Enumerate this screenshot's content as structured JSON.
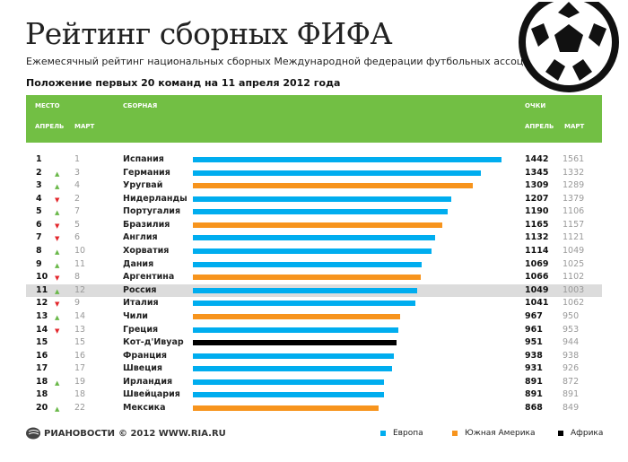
{
  "title": "Рейтинг сборных ФИФА",
  "subtitle": "Ежемесячный рейтинг национальных сборных Международной федерации футбольных ассоциаций",
  "caption": "Положение первых 20 команд на 11 апреля 2012 года",
  "header": {
    "place": "МЕСТО",
    "april": "АПРЕЛЬ",
    "march": "МАРТ",
    "team": "СБОРНАЯ",
    "points": "ОЧКИ",
    "points_april": "АПРЕЛЬ",
    "points_march": "МАРТ"
  },
  "colors": {
    "europe": "#00adef",
    "south_america": "#f7941d",
    "africa": "#000000",
    "header": "#72bf44",
    "highlight": "#dcdcdc"
  },
  "chart_data": {
    "type": "bar",
    "orientation": "horizontal",
    "title": "Рейтинг сборных ФИФА",
    "rows": [
      {
        "rank": "1",
        "change": "",
        "march": "1",
        "team": "Испания",
        "region": "europe",
        "points": 1442,
        "points_march": 1561
      },
      {
        "rank": "2",
        "change": "up",
        "march": "3",
        "team": "Германия",
        "region": "europe",
        "points": 1345,
        "points_march": 1332
      },
      {
        "rank": "3",
        "change": "up",
        "march": "4",
        "team": "Уругвай",
        "region": "south_america",
        "points": 1309,
        "points_march": 1289
      },
      {
        "rank": "4",
        "change": "down",
        "march": "2",
        "team": "Нидерланды",
        "region": "europe",
        "points": 1207,
        "points_march": 1379
      },
      {
        "rank": "5",
        "change": "up",
        "march": "7",
        "team": "Португалия",
        "region": "europe",
        "points": 1190,
        "points_march": 1106
      },
      {
        "rank": "6",
        "change": "down",
        "march": "5",
        "team": "Бразилия",
        "region": "south_america",
        "points": 1165,
        "points_march": 1157
      },
      {
        "rank": "7",
        "change": "down",
        "march": "6",
        "team": "Англия",
        "region": "europe",
        "points": 1132,
        "points_march": 1121
      },
      {
        "rank": "8",
        "change": "up",
        "march": "10",
        "team": "Хорватия",
        "region": "europe",
        "points": 1114,
        "points_march": 1049
      },
      {
        "rank": "9",
        "change": "up",
        "march": "11",
        "team": "Дания",
        "region": "europe",
        "points": 1069,
        "points_march": 1025
      },
      {
        "rank": "10",
        "change": "down",
        "march": "8",
        "team": "Аргентина",
        "region": "south_america",
        "points": 1066,
        "points_march": 1102
      },
      {
        "rank": "11",
        "change": "up",
        "march": "12",
        "team": "Россия",
        "region": "europe",
        "points": 1049,
        "points_march": 1003,
        "highlight": true
      },
      {
        "rank": "12",
        "change": "down",
        "march": "9",
        "team": "Италия",
        "region": "europe",
        "points": 1041,
        "points_march": 1062
      },
      {
        "rank": "13",
        "change": "up",
        "march": "14",
        "team": "Чили",
        "region": "south_america",
        "points": 967,
        "points_march": 950
      },
      {
        "rank": "14",
        "change": "down",
        "march": "13",
        "team": "Греция",
        "region": "europe",
        "points": 961,
        "points_march": 953
      },
      {
        "rank": "15",
        "change": "",
        "march": "15",
        "team": "Кот-д'Ивуар",
        "region": "africa",
        "points": 951,
        "points_march": 944
      },
      {
        "rank": "16",
        "change": "",
        "march": "16",
        "team": "Франция",
        "region": "europe",
        "points": 938,
        "points_march": 938
      },
      {
        "rank": "17",
        "change": "",
        "march": "17",
        "team": "Швеция",
        "region": "europe",
        "points": 931,
        "points_march": 926
      },
      {
        "rank": "18",
        "change": "up",
        "march": "19",
        "team": "Ирландия",
        "region": "europe",
        "points": 891,
        "points_march": 872
      },
      {
        "rank": "18",
        "change": "",
        "march": "18",
        "team": "Швейцария",
        "region": "europe",
        "points": 891,
        "points_march": 891
      },
      {
        "rank": "20",
        "change": "up",
        "march": "22",
        "team": "Мексика",
        "region": "south_america",
        "points": 868,
        "points_march": 849
      }
    ],
    "legend": [
      {
        "label": "Европа",
        "region": "europe"
      },
      {
        "label": "Южная Америка",
        "region": "south_america"
      },
      {
        "label": "Африка",
        "region": "africa"
      }
    ],
    "legend_placement": "bottom-right"
  },
  "footer": {
    "brand": "РИАНОВОСТИ",
    "copyright": "© 2012 WWW.RIA.RU"
  }
}
